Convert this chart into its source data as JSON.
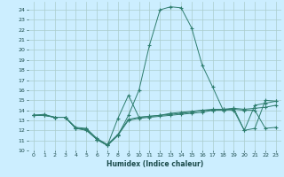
{
  "title": "",
  "xlabel": "Humidex (Indice chaleur)",
  "bg_color": "#cceeff",
  "grid_color": "#aacccc",
  "line_color": "#2e7d6e",
  "xlim": [
    -0.5,
    23.5
  ],
  "ylim": [
    10,
    24.8
  ],
  "yticks": [
    10,
    11,
    12,
    13,
    14,
    15,
    16,
    17,
    18,
    19,
    20,
    21,
    22,
    23,
    24
  ],
  "xticks": [
    0,
    1,
    2,
    3,
    4,
    5,
    6,
    7,
    8,
    9,
    10,
    11,
    12,
    13,
    14,
    15,
    16,
    17,
    18,
    19,
    20,
    21,
    22,
    23
  ],
  "main_y": [
    13.5,
    13.6,
    13.3,
    13.3,
    12.2,
    12.0,
    11.1,
    10.5,
    11.5,
    13.5,
    16.0,
    20.5,
    24.0,
    24.3,
    24.2,
    22.2,
    18.5,
    16.3,
    14.0,
    14.2,
    12.0,
    12.2,
    15.0,
    14.9
  ],
  "flat_y": [
    13.5,
    13.5,
    13.3,
    13.3,
    12.2,
    12.1,
    11.1,
    10.5,
    11.5,
    13.0,
    13.2,
    13.3,
    13.4,
    13.5,
    13.6,
    13.7,
    13.8,
    14.0,
    14.0,
    14.1,
    14.0,
    14.0,
    12.2,
    12.3
  ],
  "spike_y": [
    13.5,
    13.5,
    13.3,
    13.3,
    12.2,
    12.1,
    11.1,
    10.5,
    13.2,
    15.5,
    13.3,
    13.4,
    13.5,
    13.6,
    13.7,
    13.8,
    14.0,
    14.0,
    14.1,
    14.0,
    12.0,
    14.5,
    14.7,
    14.9
  ],
  "horiz_y": [
    13.5,
    13.5,
    13.3,
    13.3,
    12.3,
    12.2,
    11.2,
    10.6,
    11.6,
    13.1,
    13.3,
    13.4,
    13.5,
    13.7,
    13.8,
    13.9,
    14.0,
    14.1,
    14.1,
    14.2,
    14.1,
    14.2,
    14.3,
    14.5
  ]
}
